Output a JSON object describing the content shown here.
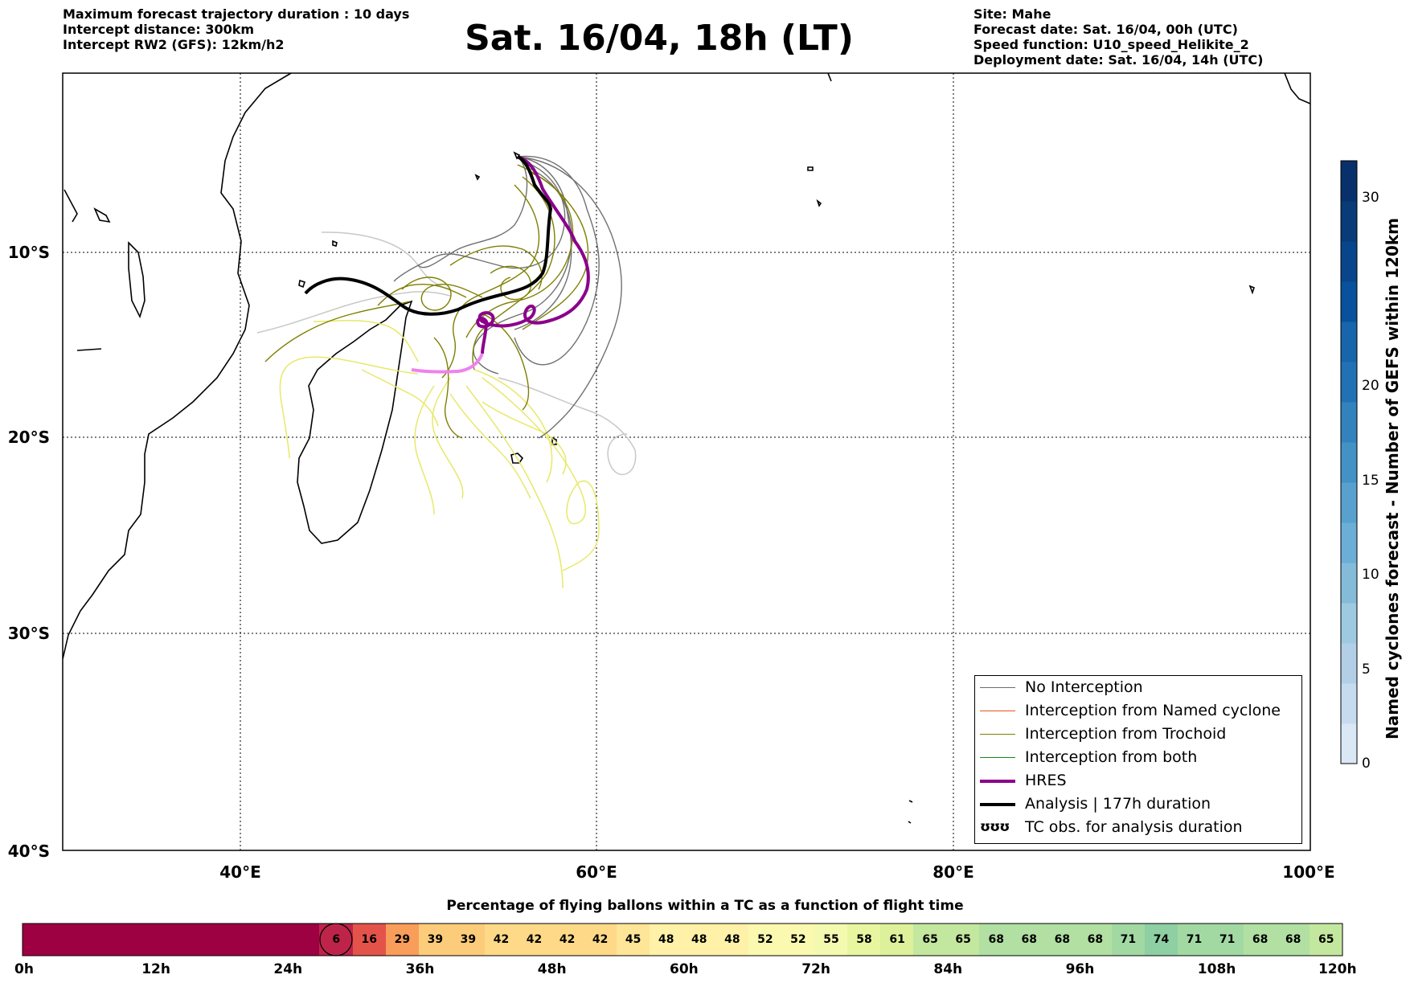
{
  "header_left": [
    "Maximum forecast trajectory duration : 10 days",
    "Intercept distance: 300km",
    "Intercept RW2 (GFS):  12km/h2"
  ],
  "title": "Sat. 16/04, 18h (LT)",
  "header_right": [
    "Site: Mahe",
    "Forecast date: Sat. 16/04, 00h (UTC)",
    "Speed function: U10_speed_Helikite_2",
    "Deployment date: Sat. 16/04, 14h (UTC)"
  ],
  "map": {
    "lon_ticks": [
      "40°E",
      "60°E",
      "80°E",
      "100°E"
    ],
    "lat_ticks": [
      "10°S",
      "20°S",
      "30°S",
      "40°S"
    ],
    "lon_range": [
      30,
      100
    ],
    "lat_range": [
      -40,
      -0.7
    ],
    "gridlines": true
  },
  "legend": {
    "items": [
      {
        "label": "No Interception",
        "color": "#6b6b6b",
        "style": "thin"
      },
      {
        "label": "Interception from Named cyclone",
        "color": "#e8541c",
        "style": "thin"
      },
      {
        "label": "Interception from Trochoid",
        "color": "#7f7f00",
        "style": "thin"
      },
      {
        "label": "Interception from both",
        "color": "#1a8a1a",
        "style": "thin"
      },
      {
        "label": "HRES",
        "color": "#8b008b",
        "style": "thick"
      },
      {
        "label": "Analysis | 177h duration",
        "color": "#000000",
        "style": "thick"
      },
      {
        "label": "TC obs. for analysis duration",
        "color": "#000000",
        "style": "symbol",
        "symbol": "ʊʊʊ"
      }
    ]
  },
  "colorbar": {
    "label": "Named cyclones forecast - Number of GEFS within 120km",
    "ticks": [
      "0",
      "5",
      "10",
      "15",
      "20",
      "30"
    ],
    "colors": [
      "#dae8f6",
      "#c6dbef",
      "#b2cfe7",
      "#9ecae1",
      "#84bbd9",
      "#6baed6",
      "#58a1cf",
      "#4292c6",
      "#3282be",
      "#2171b5",
      "#1765ab",
      "#08519c",
      "#08458a",
      "#083b78",
      "#08306b"
    ]
  },
  "percentage_bar": {
    "title": "Percentage of flying ballons within a TC as a function of flight time",
    "cells": [
      {
        "value": "",
        "color": "#9e0142"
      },
      {
        "value": "",
        "color": "#9e0142"
      },
      {
        "value": "",
        "color": "#9e0142"
      },
      {
        "value": "",
        "color": "#9e0142"
      },
      {
        "value": "",
        "color": "#9e0142"
      },
      {
        "value": "",
        "color": "#9e0142"
      },
      {
        "value": "",
        "color": "#9e0142"
      },
      {
        "value": "",
        "color": "#9e0142"
      },
      {
        "value": "",
        "color": "#9e0142"
      },
      {
        "value": "6",
        "color": "#be2449",
        "circled": true
      },
      {
        "value": "16",
        "color": "#e4534a"
      },
      {
        "value": "29",
        "color": "#f99d5a"
      },
      {
        "value": "39",
        "color": "#fdcc7a"
      },
      {
        "value": "39",
        "color": "#fdcc7a"
      },
      {
        "value": "42",
        "color": "#fed987"
      },
      {
        "value": "42",
        "color": "#fed987"
      },
      {
        "value": "42",
        "color": "#fed987"
      },
      {
        "value": "42",
        "color": "#fed987"
      },
      {
        "value": "45",
        "color": "#fee597"
      },
      {
        "value": "48",
        "color": "#fff1a8"
      },
      {
        "value": "48",
        "color": "#fff1a8"
      },
      {
        "value": "48",
        "color": "#fff1a8"
      },
      {
        "value": "52",
        "color": "#fbf8b0"
      },
      {
        "value": "52",
        "color": "#fbf8b0"
      },
      {
        "value": "55",
        "color": "#f3fab0"
      },
      {
        "value": "58",
        "color": "#e8f6a0"
      },
      {
        "value": "61",
        "color": "#dcf19a"
      },
      {
        "value": "65",
        "color": "#c3e79f"
      },
      {
        "value": "65",
        "color": "#c3e79f"
      },
      {
        "value": "68",
        "color": "#b1e0a2"
      },
      {
        "value": "68",
        "color": "#b1e0a2"
      },
      {
        "value": "68",
        "color": "#b1e0a2"
      },
      {
        "value": "68",
        "color": "#b1e0a2"
      },
      {
        "value": "71",
        "color": "#a2d9a3"
      },
      {
        "value": "74",
        "color": "#8ecfa3"
      },
      {
        "value": "71",
        "color": "#a2d9a3"
      },
      {
        "value": "71",
        "color": "#a2d9a3"
      },
      {
        "value": "68",
        "color": "#b1e0a2"
      },
      {
        "value": "68",
        "color": "#b1e0a2"
      },
      {
        "value": "65",
        "color": "#c3e79f"
      }
    ],
    "time_labels": [
      "0h",
      "12h",
      "24h",
      "36h",
      "48h",
      "60h",
      "72h",
      "84h",
      "96h",
      "108h",
      "120h"
    ]
  }
}
